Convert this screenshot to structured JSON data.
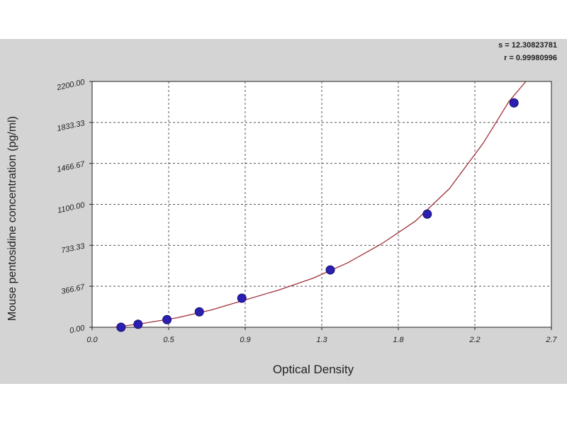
{
  "chart_data": {
    "type": "scatter",
    "xlabel": "Optical Density",
    "ylabel": "Mouse pentosidine concentration (pg/ml)",
    "xlim": [
      0.0,
      2.7
    ],
    "ylim": [
      0.0,
      2200.0
    ],
    "x_ticks": [
      "0.0",
      "0.5",
      "0.9",
      "1.3",
      "1.8",
      "2.2",
      "2.7"
    ],
    "x_tick_values": [
      0.0,
      0.45,
      0.9,
      1.35,
      1.8,
      2.25,
      2.7
    ],
    "y_ticks": [
      "0.00",
      "366.67",
      "733.33",
      "1100.00",
      "1466.67",
      "1833.33",
      "2200.00"
    ],
    "y_tick_values": [
      0.0,
      366.67,
      733.33,
      1100.0,
      1466.67,
      1833.33,
      2200.0
    ],
    "grid": true,
    "points": [
      {
        "x": 0.17,
        "y": 0
      },
      {
        "x": 0.27,
        "y": 27
      },
      {
        "x": 0.44,
        "y": 68
      },
      {
        "x": 0.63,
        "y": 138
      },
      {
        "x": 0.88,
        "y": 260
      },
      {
        "x": 1.4,
        "y": 513
      },
      {
        "x": 1.97,
        "y": 1013
      },
      {
        "x": 2.48,
        "y": 2008
      }
    ],
    "fit_curve": {
      "x": [
        0.13,
        0.3,
        0.5,
        0.7,
        0.9,
        1.1,
        1.3,
        1.5,
        1.7,
        1.9,
        2.1,
        2.3,
        2.45,
        2.55
      ],
      "y": [
        0,
        35,
        85,
        155,
        245,
        335,
        440,
        575,
        745,
        950,
        1240,
        1650,
        2020,
        2200
      ]
    },
    "marker_color": "#2a1fb0",
    "curve_color": "#a0303a"
  },
  "stats": {
    "s": "s = 12.30823781",
    "r": "r = 0.99980996"
  }
}
